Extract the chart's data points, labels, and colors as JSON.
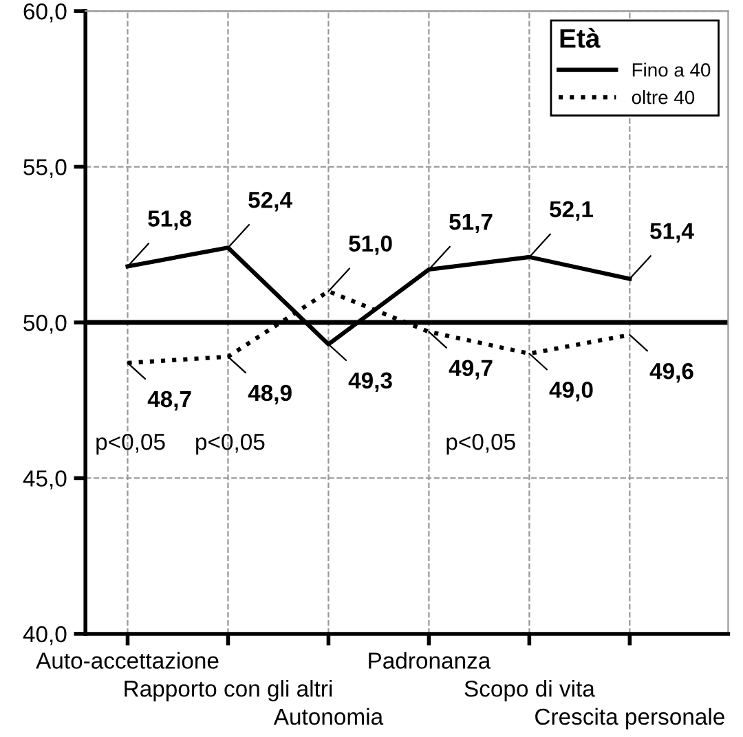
{
  "chart_data": {
    "type": "line",
    "categories": [
      "Auto-accettazione",
      "Rapporto con gli altri",
      "Autonomia",
      "Padronanza",
      "Scopo di vita",
      "Crescita personale"
    ],
    "series": [
      {
        "name": "Fino a 40",
        "color": "#000000",
        "line_style": "solid",
        "values": [
          51.8,
          52.4,
          49.3,
          51.7,
          52.1,
          51.4
        ],
        "value_labels": [
          "51,8",
          "52,4",
          "49,3",
          "51,7",
          "52,1",
          "51,4"
        ]
      },
      {
        "name": "oltre 40",
        "color": "#000000",
        "line_style": "dotted",
        "values": [
          48.7,
          48.9,
          51.0,
          49.7,
          49.0,
          49.6
        ],
        "value_labels": [
          "48,7",
          "48,9",
          "51,0",
          "49,7",
          "49,0",
          "49,6"
        ]
      }
    ],
    "ylim": [
      40,
      60
    ],
    "yticks": [
      {
        "value": 40,
        "label": "40,0"
      },
      {
        "value": 45,
        "label": "45,0"
      },
      {
        "value": 50,
        "label": "50,0"
      },
      {
        "value": 55,
        "label": "55,0"
      },
      {
        "value": 60,
        "label": "60,0"
      }
    ],
    "ref_lines": [
      {
        "axis": "y",
        "value": 50,
        "color": "#000000",
        "line_style": "solid"
      }
    ],
    "annotations": [
      "p<0,05",
      "p<0,05",
      "p<0,05"
    ],
    "legend_title": "Età",
    "legend": "top right",
    "grid": true,
    "marker": "none"
  }
}
